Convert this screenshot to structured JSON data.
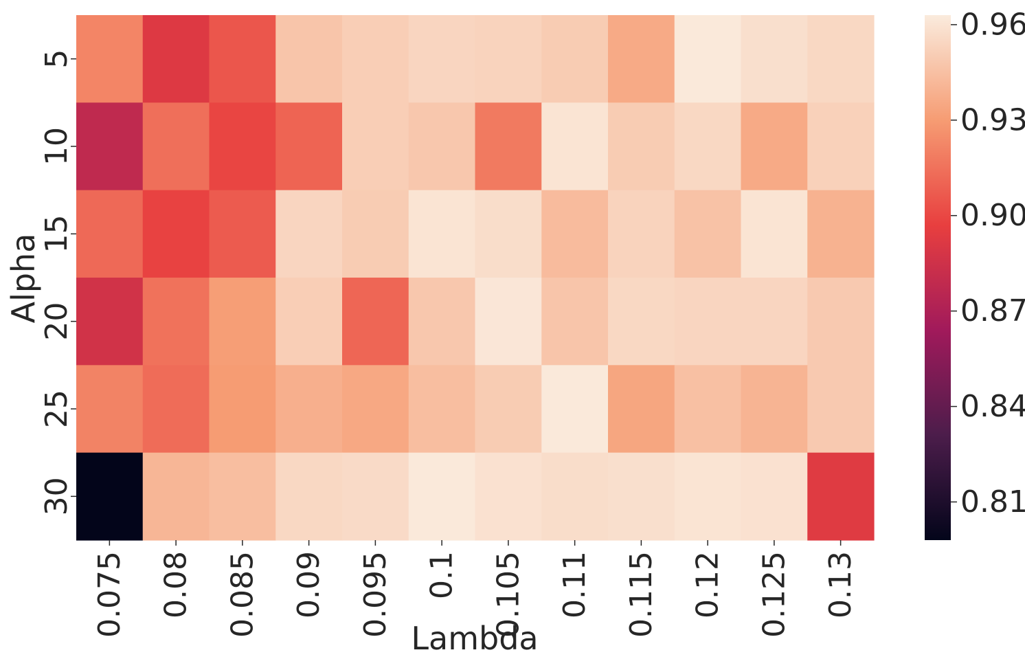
{
  "chart_data": {
    "type": "heatmap",
    "title": "",
    "xlabel": "Lambda",
    "ylabel": "Alpha",
    "x_categories": [
      "0.075",
      "0.08",
      "0.085",
      "0.09",
      "0.095",
      "0.1",
      "0.105",
      "0.11",
      "0.115",
      "0.12",
      "0.125",
      "0.13"
    ],
    "y_categories": [
      "5",
      "10",
      "15",
      "20",
      "25",
      "30"
    ],
    "values": [
      [
        0.922,
        0.892,
        0.905,
        0.947,
        0.951,
        0.954,
        0.953,
        0.95,
        0.936,
        0.962,
        0.958,
        0.955
      ],
      [
        0.878,
        0.914,
        0.899,
        0.91,
        0.951,
        0.948,
        0.918,
        0.96,
        0.95,
        0.955,
        0.936,
        0.952
      ],
      [
        0.912,
        0.898,
        0.907,
        0.954,
        0.95,
        0.96,
        0.957,
        0.943,
        0.953,
        0.946,
        0.96,
        0.939
      ],
      [
        0.886,
        0.915,
        0.931,
        0.951,
        0.911,
        0.948,
        0.961,
        0.947,
        0.955,
        0.954,
        0.954,
        0.949
      ],
      [
        0.921,
        0.913,
        0.93,
        0.938,
        0.935,
        0.944,
        0.95,
        0.962,
        0.934,
        0.945,
        0.94,
        0.949
      ],
      [
        0.798,
        0.941,
        0.944,
        0.955,
        0.956,
        0.962,
        0.959,
        0.957,
        0.958,
        0.96,
        0.959,
        0.893
      ]
    ],
    "colorbar": {
      "range": [
        0.798,
        0.963
      ],
      "ticks": [
        "0.81",
        "0.84",
        "0.87",
        "0.90",
        "0.93",
        "0.96"
      ],
      "colormap": "rocket",
      "colors": [
        "#03051a",
        "#4c1d4b",
        "#a11a5b",
        "#e83f3f",
        "#f69c73",
        "#faebdd"
      ]
    },
    "grid": false,
    "legend": "colorbar-right"
  }
}
